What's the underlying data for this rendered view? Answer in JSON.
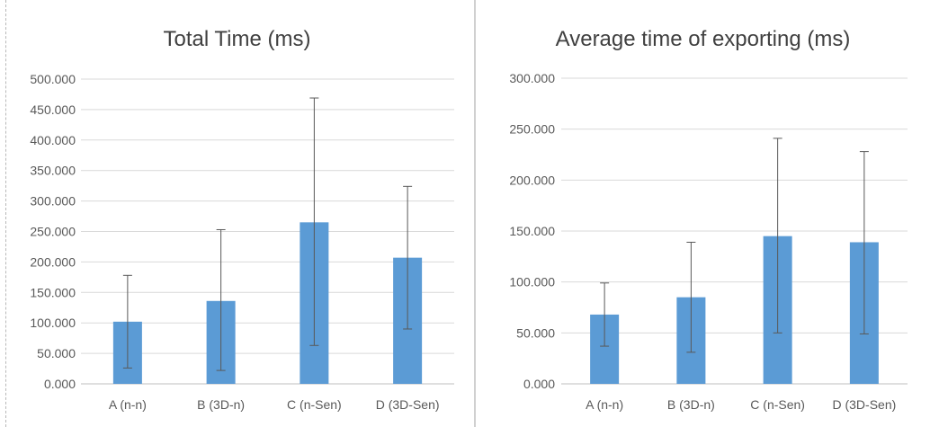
{
  "chart_data": [
    {
      "type": "bar",
      "title": "Total Time (ms)",
      "categories": [
        "A (n-n)",
        "B (3D-n)",
        "C (n-Sen)",
        "D (3D-Sen)"
      ],
      "values": [
        102000,
        136000,
        265000,
        207000
      ],
      "error_high": [
        178000,
        253000,
        469000,
        324000
      ],
      "error_low": [
        26000,
        22000,
        63000,
        90000
      ],
      "yticks": [
        "0.000",
        "50.000",
        "100.000",
        "150.000",
        "200.000",
        "250.000",
        "300.000",
        "350.000",
        "400.000",
        "450.000",
        "500.000"
      ],
      "ylim": [
        0,
        500000
      ],
      "grid": true,
      "color": "#5b9bd5"
    },
    {
      "type": "bar",
      "title": "Average time of exporting (ms)",
      "categories": [
        "A (n-n)",
        "B (3D-n)",
        "C (n-Sen)",
        "D (3D-Sen)"
      ],
      "values": [
        68000,
        85000,
        145000,
        139000
      ],
      "error_high": [
        99000,
        139000,
        241000,
        228000
      ],
      "error_low": [
        37000,
        31000,
        50000,
        49000
      ],
      "yticks": [
        "0.000",
        "50.000",
        "100.000",
        "150.000",
        "200.000",
        "250.000",
        "300.000"
      ],
      "ylim": [
        0,
        300000
      ],
      "grid": true,
      "color": "#5b9bd5"
    }
  ]
}
